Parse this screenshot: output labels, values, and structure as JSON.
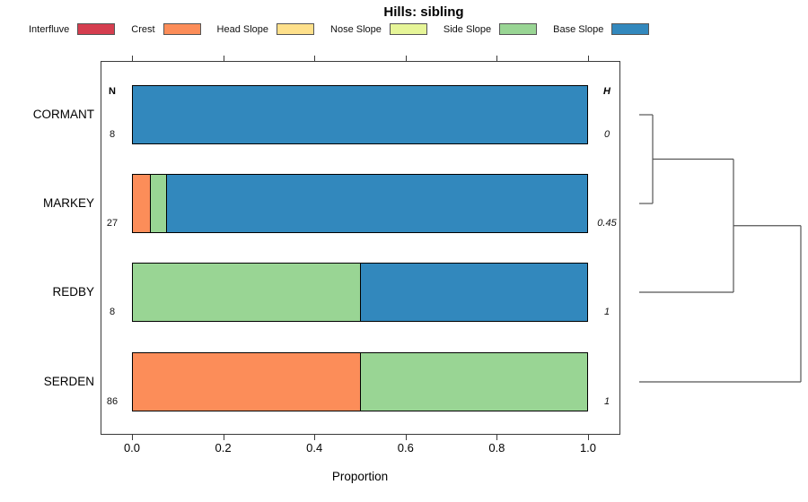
{
  "title": "Hills: sibling",
  "legend": {
    "items": [
      {
        "label": "Interfluve",
        "color": "#D53E4F"
      },
      {
        "label": "Crest",
        "color": "#FC8D59"
      },
      {
        "label": "Head Slope",
        "color": "#FEE08B"
      },
      {
        "label": "Nose Slope",
        "color": "#E6F598"
      },
      {
        "label": "Side Slope",
        "color": "#99D594"
      },
      {
        "label": "Base Slope",
        "color": "#3288BD"
      }
    ]
  },
  "columns": {
    "n_header": "N",
    "h_header": "H"
  },
  "axis": {
    "label": "Proportion",
    "tick_labels": [
      "0.0",
      "0.2",
      "0.4",
      "0.6",
      "0.8",
      "1.0"
    ],
    "tick_values": [
      0,
      0.2,
      0.4,
      0.6,
      0.8,
      1.0
    ],
    "range": [
      0,
      1
    ]
  },
  "chart_data": {
    "type": "bar",
    "variant": "horizontal-stacked-proportion",
    "title": "Hills: sibling",
    "xlabel": "Proportion",
    "xlim": [
      0,
      1
    ],
    "grid": false,
    "legend_position": "top",
    "categories": [
      "CORMANT",
      "MARKEY",
      "REDBY",
      "SERDEN"
    ],
    "rows": [
      {
        "label": "CORMANT",
        "n": "8",
        "h": "0",
        "segments": [
          {
            "name": "Base Slope",
            "value": 1.0
          }
        ]
      },
      {
        "label": "MARKEY",
        "n": "27",
        "h": "0.45",
        "segments": [
          {
            "name": "Crest",
            "value": 0.037
          },
          {
            "name": "Side Slope",
            "value": 0.037
          },
          {
            "name": "Base Slope",
            "value": 0.926
          }
        ]
      },
      {
        "label": "REDBY",
        "n": "8",
        "h": "1",
        "segments": [
          {
            "name": "Side Slope",
            "value": 0.5
          },
          {
            "name": "Base Slope",
            "value": 0.5
          }
        ]
      },
      {
        "label": "SERDEN",
        "n": "86",
        "h": "1",
        "segments": [
          {
            "name": "Crest",
            "value": 0.5
          },
          {
            "name": "Side Slope",
            "value": 0.5
          }
        ]
      }
    ],
    "dendrogram": {
      "side": "right",
      "leaf_order": [
        "CORMANT",
        "MARKEY",
        "REDBY",
        "SERDEN"
      ],
      "merges": [
        {
          "join": [
            "CORMANT",
            "MARKEY"
          ]
        },
        {
          "join": [
            "cluster-1",
            "REDBY"
          ]
        },
        {
          "join": [
            "cluster-2",
            "SERDEN"
          ]
        }
      ]
    }
  }
}
